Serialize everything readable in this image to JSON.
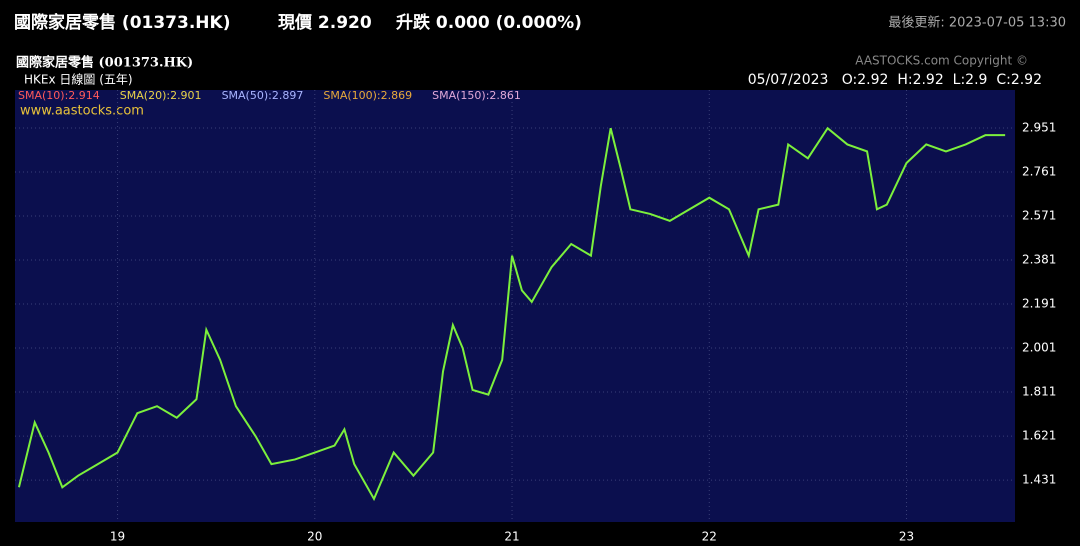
{
  "header": {
    "quote_title": "國際家居零售 (01373.HK)",
    "price": "現價 2.920",
    "change": "升跌 0.000 (0.000%)",
    "updated": "最後更新: 2023-07-05 13:30"
  },
  "chart_data": {
    "type": "line",
    "title": "國際家居零售 (001373.HK)",
    "subtitle": "HKEx 日線圖 (五年)",
    "copyright": "AASTOCKS.com Copyright ©",
    "watermark": "www.aastocks.com",
    "ohlc_label": "05/07/2023   O:2.92  H:2.92  L:2.9  C:2.92",
    "indicators": [
      {
        "label": "SMA(10):2.914",
        "color": "#ff5a5a"
      },
      {
        "label": "SMA(20):2.901",
        "color": "#e8d24a"
      },
      {
        "label": "SMA(50):2.897",
        "color": "#a9b4ff"
      },
      {
        "label": "SMA(100):2.869",
        "color": "#e8a93a"
      },
      {
        "label": "SMA(150):2.861",
        "color": "#e0a8d8"
      }
    ],
    "series": [
      {
        "name": "Price",
        "color": "#7cf03c",
        "x": [
          2018.5,
          2018.58,
          2018.65,
          2018.72,
          2018.8,
          2018.9,
          2019.0,
          2019.1,
          2019.2,
          2019.3,
          2019.4,
          2019.45,
          2019.52,
          2019.6,
          2019.7,
          2019.78,
          2019.9,
          2020.0,
          2020.1,
          2020.15,
          2020.2,
          2020.3,
          2020.4,
          2020.5,
          2020.6,
          2020.65,
          2020.7,
          2020.75,
          2020.8,
          2020.88,
          2020.95,
          2021.0,
          2021.05,
          2021.1,
          2021.2,
          2021.3,
          2021.4,
          2021.45,
          2021.5,
          2021.55,
          2021.6,
          2021.7,
          2021.8,
          2021.9,
          2022.0,
          2022.1,
          2022.2,
          2022.25,
          2022.35,
          2022.4,
          2022.5,
          2022.6,
          2022.7,
          2022.8,
          2022.85,
          2022.9,
          2023.0,
          2023.1,
          2023.2,
          2023.3,
          2023.4,
          2023.5
        ],
        "values": [
          1.4,
          1.68,
          1.55,
          1.4,
          1.45,
          1.5,
          1.55,
          1.72,
          1.75,
          1.7,
          1.78,
          2.08,
          1.95,
          1.75,
          1.62,
          1.5,
          1.52,
          1.55,
          1.58,
          1.65,
          1.5,
          1.35,
          1.55,
          1.45,
          1.55,
          1.9,
          2.1,
          2.0,
          1.82,
          1.8,
          1.95,
          2.4,
          2.25,
          2.2,
          2.35,
          2.45,
          2.4,
          2.7,
          2.95,
          2.78,
          2.6,
          2.58,
          2.55,
          2.6,
          2.65,
          2.6,
          2.4,
          2.6,
          2.62,
          2.88,
          2.82,
          2.95,
          2.88,
          2.85,
          2.6,
          2.62,
          2.8,
          2.88,
          2.85,
          2.88,
          2.92,
          2.92
        ]
      }
    ],
    "xlim": [
      2018.48,
      2023.55
    ],
    "xticks": [
      {
        "value": 2019,
        "label": "19"
      },
      {
        "value": 2020,
        "label": "20"
      },
      {
        "value": 2021,
        "label": "21"
      },
      {
        "value": 2022,
        "label": "22"
      },
      {
        "value": 2023,
        "label": "23"
      }
    ],
    "ylim": [
      1.25,
      3.115
    ],
    "yticks": [
      1.431,
      1.621,
      1.811,
      2.001,
      2.191,
      2.381,
      2.571,
      2.761,
      2.951
    ],
    "grid": true
  }
}
